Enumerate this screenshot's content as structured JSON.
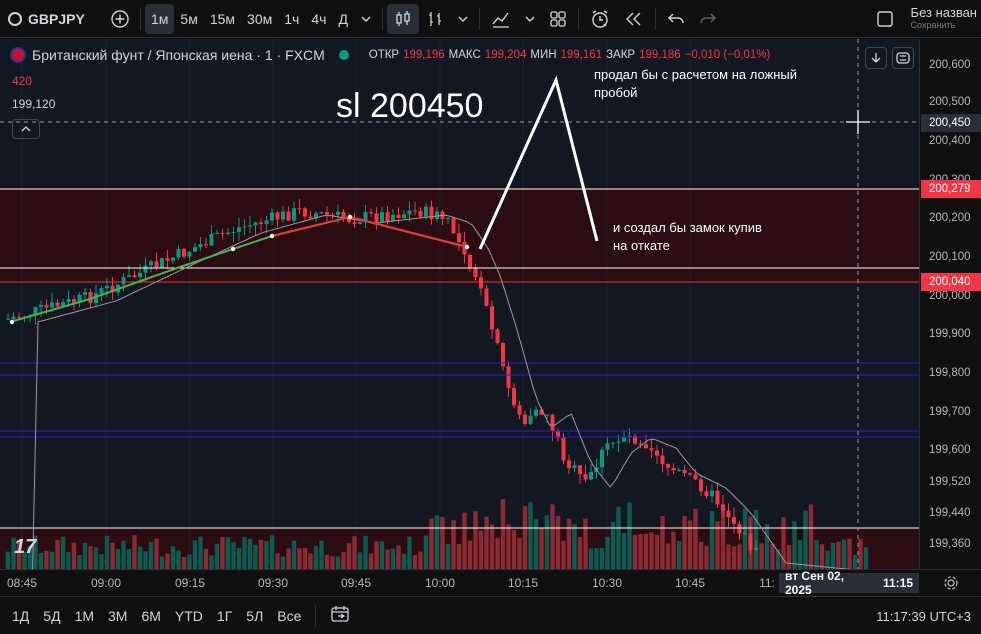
{
  "toolbar": {
    "symbol": "GBPJPY",
    "intervals": [
      "1м",
      "5м",
      "15м",
      "30м",
      "1ч",
      "4ч",
      "Д"
    ],
    "active_interval": "1м",
    "layout_name": "Без назван",
    "layout_status": "Сохранить"
  },
  "legend": {
    "title": "Британский фунт / Японская иена · 1 · FXCM",
    "open_label": "ОТКР",
    "open": "199,196",
    "high_label": "МАКС",
    "high": "199,204",
    "low_label": "МИН",
    "low": "199,161",
    "close_label": "ЗАКР",
    "close": "199,186",
    "change": "−0,010 (−0,01%)",
    "sub_value_1": "420",
    "sub_value_2": "199,120"
  },
  "annotations": {
    "sl": "sl 200450",
    "note1_line1": "продал бы с расчетом на ложный",
    "note1_line2": "пробой",
    "note2_line1": "и создал бы замок купив",
    "note2_line2": "на откате"
  },
  "price_axis": {
    "labels": [
      "200,600",
      "200,500",
      "200,400",
      "200,300",
      "200,200",
      "200,100",
      "200,000",
      "199,900",
      "199,800",
      "199,700",
      "199,600",
      "199,520",
      "199,440",
      "199,360"
    ],
    "tags": {
      "crosshair": "200,450",
      "level_white": "200,279",
      "level_red": "200,040"
    }
  },
  "time_axis": {
    "labels": [
      "08:45",
      "09:00",
      "09:15",
      "09:30",
      "09:45",
      "10:00",
      "10:15",
      "10:30",
      "10:45",
      "11:"
    ],
    "crosshair_date": "вт Сен 02, 2025",
    "crosshair_time": "11:15"
  },
  "bottom_bar": {
    "ranges": [
      "1Д",
      "5Д",
      "1М",
      "3М",
      "6М",
      "YTD",
      "1Г",
      "5Л",
      "Все"
    ],
    "clock": "11:17:39 UTC+3"
  },
  "colors": {
    "up": "#089981",
    "down": "#f23645",
    "background": "#131722",
    "zone": "#2a0c12",
    "blue_line": "#2525c8",
    "ma_green": "#4caf50",
    "ma_red": "#e53935"
  }
}
